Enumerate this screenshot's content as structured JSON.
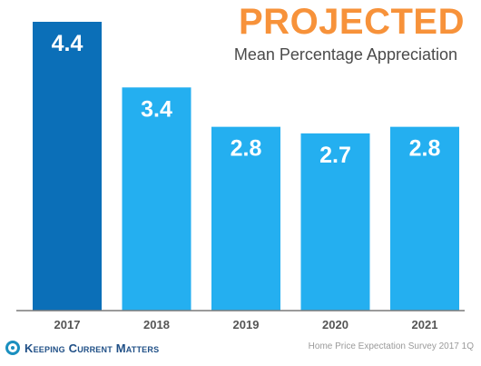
{
  "chart_data": {
    "type": "bar",
    "title": "PROJECTED",
    "subtitle": "Mean Percentage Appreciation",
    "categories": [
      "2017",
      "2018",
      "2019",
      "2020",
      "2021"
    ],
    "values": [
      4.4,
      3.4,
      2.8,
      2.7,
      2.8
    ],
    "data_labels": [
      "4.4",
      "3.4",
      "2.8",
      "2.7",
      "2.8"
    ],
    "ylim": [
      0,
      4.4
    ],
    "grid": false,
    "colors": {
      "highlight_bar": "#0b6fb8",
      "bar": "#24aff0",
      "label_text": "#ffffff",
      "tick_text": "#555555",
      "title": "#f7923a"
    }
  },
  "footer": {
    "brand": "Keeping Current Matters",
    "source": "Home Price Expectation Survey 2017 1Q",
    "logo_icon": "circle-logo-icon"
  }
}
